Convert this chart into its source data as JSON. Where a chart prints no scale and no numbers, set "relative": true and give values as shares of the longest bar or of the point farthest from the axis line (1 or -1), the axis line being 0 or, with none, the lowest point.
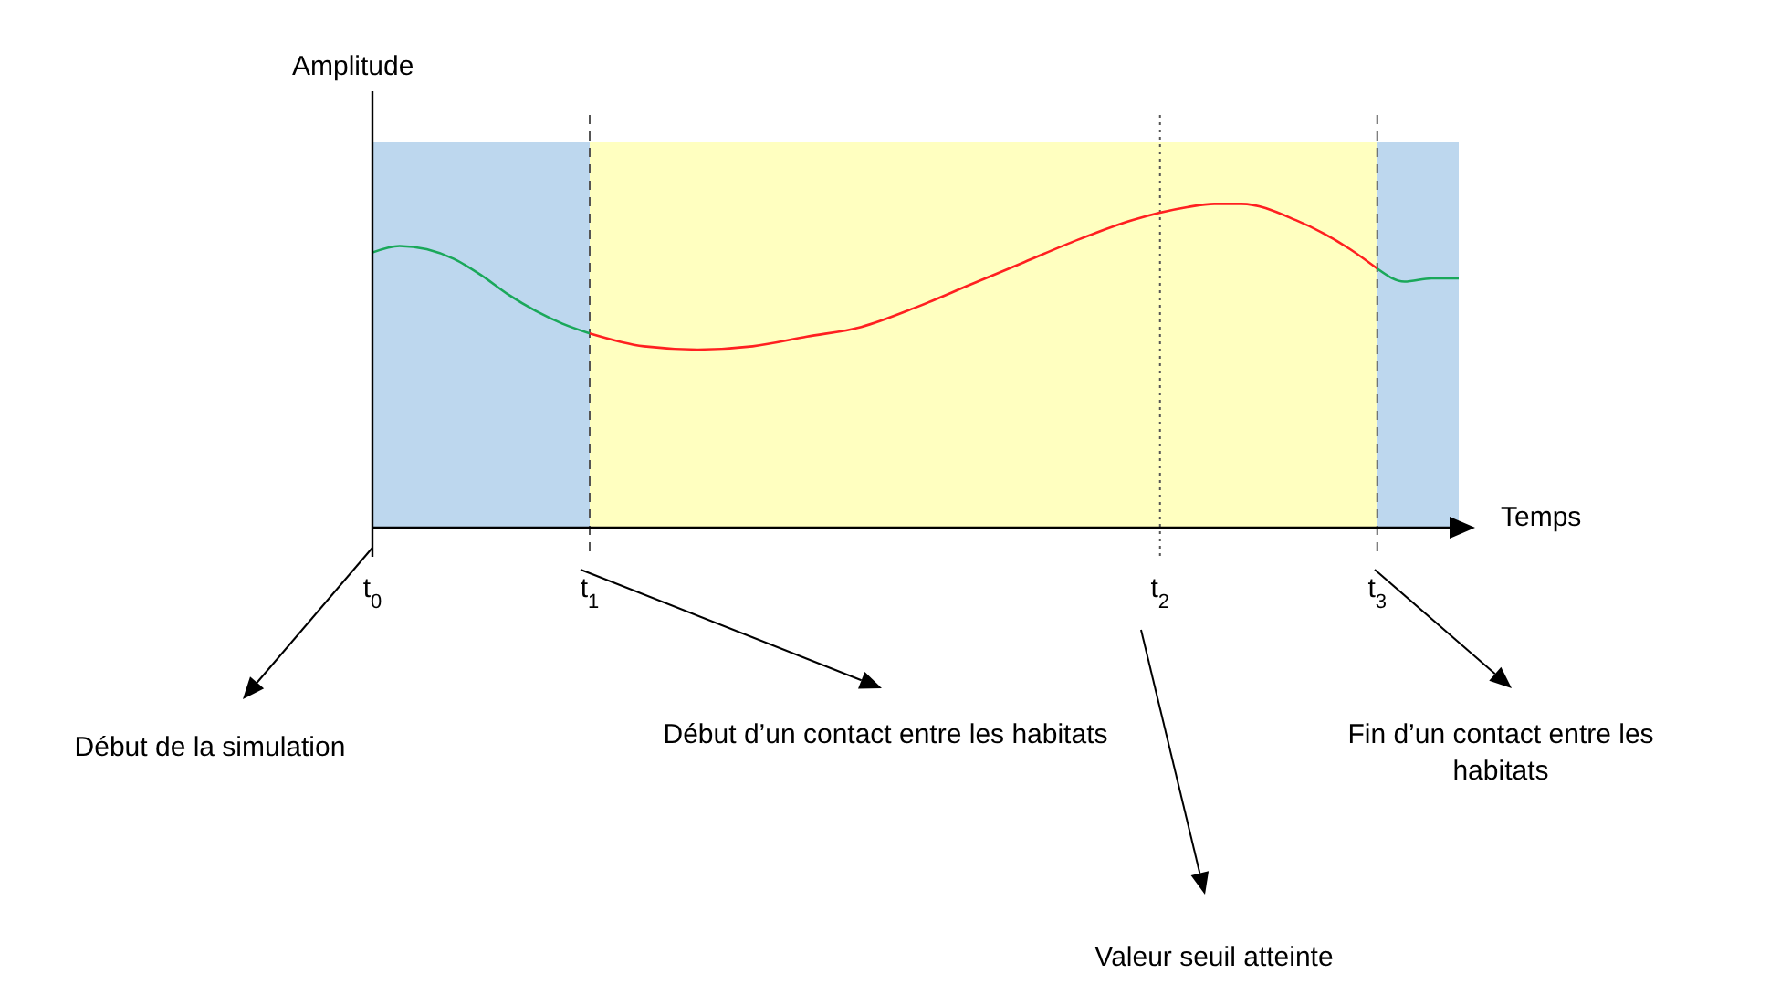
{
  "chart_data": {
    "type": "line",
    "relative": true,
    "xlabel": "Temps",
    "ylabel": "Amplitude",
    "categories": [
      "t$_{0}$",
      null,
      null,
      null,
      null,
      null,
      null,
      null,
      "t$_{1}$",
      null,
      null,
      null,
      null,
      null,
      null,
      null,
      null,
      null,
      null,
      null,
      null,
      null,
      null,
      null,
      null,
      null,
      null,
      null,
      null,
      "t$_{2}$",
      null,
      null,
      null,
      null,
      null,
      null,
      null,
      "t$_{3}$",
      null,
      null,
      null
    ],
    "series": [
      {
        "color": "#1aa85a",
        "values": [
          0.85,
          0.87,
          0.86,
          0.83,
          0.78,
          0.72,
          0.67,
          0.63,
          0.6,
          null,
          null,
          null,
          null,
          null,
          null,
          null,
          null,
          null,
          null,
          null,
          null,
          null,
          null,
          null,
          null,
          null,
          null,
          null,
          null,
          null,
          null,
          null,
          null,
          null,
          null,
          null,
          null,
          null,
          null,
          null,
          null
        ]
      },
      {
        "color": "#ff2020",
        "values": [
          null,
          null,
          null,
          null,
          null,
          null,
          null,
          null,
          0.6,
          null,
          0.56,
          null,
          0.55,
          null,
          0.56,
          null,
          0.59,
          null,
          0.62,
          null,
          0.68,
          null,
          0.75,
          null,
          0.82,
          null,
          0.89,
          null,
          0.95,
          null,
          0.99,
          1,
          1,
          null,
          0.95,
          null,
          0.86,
          0.8,
          null,
          null,
          null
        ]
      },
      {
        "color": "#1aa85a",
        "values": [
          null,
          null,
          null,
          null,
          null,
          null,
          null,
          null,
          null,
          null,
          null,
          null,
          null,
          null,
          null,
          null,
          null,
          null,
          null,
          null,
          null,
          null,
          null,
          null,
          null,
          null,
          null,
          null,
          null,
          null,
          null,
          null,
          null,
          null,
          null,
          null,
          null,
          0.8,
          0.76,
          0.77,
          0.77
        ]
      }
    ],
    "bands": [
      {
        "axis": "x",
        "from": "t$_{1}$",
        "to": "t$_{3}$",
        "color": "#ffffc0"
      }
    ],
    "ref_lines": [
      {
        "axis": "x",
        "value": "t$_{1}$",
        "color": "#555555",
        "line_style": "dashed"
      },
      {
        "axis": "x",
        "value": "t$_{2}$",
        "color": "#555555",
        "line_style": "dotted"
      },
      {
        "axis": "x",
        "value": "t$_{3}$",
        "color": "#555555",
        "line_style": "dashed"
      }
    ],
    "annotations": [
      "Début de la simulation",
      "Début d’un contact entre les habitats",
      "Valeur seuil atteinte",
      "Fin d’un contact entre les habitats"
    ],
    "legend": false,
    "grid": false,
    "marker": "none",
    "line_style": "solid"
  }
}
